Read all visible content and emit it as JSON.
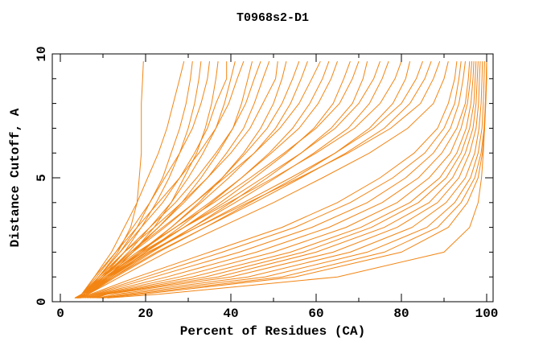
{
  "chart_data": {
    "type": "line",
    "title": "T0968s2-D1",
    "xlabel": "Percent of Residues (CA)",
    "ylabel": "Distance Cutoff, A",
    "xlim": [
      0,
      100
    ],
    "ylim": [
      0,
      10
    ],
    "x_major_ticks": [
      0,
      20,
      40,
      60,
      80,
      100
    ],
    "x_minor_ticks": [
      10,
      30,
      50,
      70,
      90
    ],
    "y_major_ticks": [
      0,
      5,
      10
    ],
    "y_minor_ticks": [
      1,
      2,
      3,
      4,
      6,
      7,
      8,
      9
    ],
    "grid": "off",
    "legend": "none",
    "line_color": "#F28514",
    "axis_color": "#000000",
    "note": "44 model curves; each curve lists x (percent of residues) at the distance cutoffs in y_grid",
    "y_grid": [
      0.15,
      0.3,
      1,
      2,
      3,
      4,
      5,
      6,
      7,
      8,
      9,
      9.7
    ],
    "curves": [
      [
        3.8,
        5.5,
        9,
        13.5,
        16.5,
        18,
        18.5,
        19,
        19,
        19,
        19.3,
        19.5
      ],
      [
        3.5,
        5,
        8,
        12,
        15,
        18,
        20.5,
        23,
        25,
        26.5,
        28,
        29
      ],
      [
        4,
        5.5,
        9,
        14,
        18,
        21,
        24,
        26,
        28,
        29.5,
        30.5,
        31
      ],
      [
        4.2,
        6,
        10,
        15,
        19,
        22.5,
        25.5,
        28,
        30,
        31.5,
        32.5,
        33
      ],
      [
        3.5,
        5,
        8.5,
        13,
        17,
        21,
        24.5,
        28,
        31,
        33,
        34.5,
        35
      ],
      [
        4.3,
        6,
        11,
        17,
        22,
        26,
        29,
        32,
        34,
        35.5,
        36.5,
        37
      ],
      [
        3.8,
        5.5,
        9,
        14,
        19,
        24,
        28,
        31.5,
        34.5,
        36.5,
        39,
        39
      ],
      [
        4.2,
        6,
        10,
        16,
        21,
        26,
        30,
        33.5,
        36.5,
        38.5,
        40,
        41
      ],
      [
        3.4,
        5,
        8,
        13,
        18,
        23,
        28,
        32.5,
        36.5,
        39.5,
        41.5,
        43
      ],
      [
        4.5,
        6.5,
        11,
        17,
        23,
        28.5,
        33,
        37,
        40.5,
        42.5,
        44,
        45
      ],
      [
        3.9,
        5.5,
        9.5,
        15,
        21,
        27,
        32,
        36.5,
        40.5,
        43.5,
        45.5,
        47
      ],
      [
        4.1,
        6,
        10,
        16.5,
        23,
        29,
        34.5,
        39,
        43,
        45.5,
        47.5,
        49
      ],
      [
        3.5,
        5,
        9,
        15,
        22,
        28.5,
        34.5,
        40,
        44.5,
        47.5,
        50.5,
        51
      ],
      [
        4.6,
        6.5,
        11.5,
        19,
        26,
        32.5,
        38,
        43,
        47,
        50,
        52,
        53
      ],
      [
        3.8,
        5.5,
        10,
        17,
        24.5,
        31.5,
        38,
        43.5,
        48.5,
        52,
        54.5,
        56
      ],
      [
        4.2,
        6,
        11,
        18.5,
        26,
        33,
        39.5,
        45.5,
        50.5,
        54,
        56.5,
        58
      ],
      [
        3.5,
        5,
        9.5,
        16.5,
        24,
        31.5,
        38.5,
        45.5,
        51.5,
        56,
        59,
        61
      ],
      [
        4.6,
        6.5,
        12,
        20,
        28,
        35.5,
        42.5,
        49,
        54.5,
        58.5,
        61.5,
        63
      ],
      [
        3.9,
        5.5,
        10.5,
        18.5,
        27,
        35,
        42.5,
        49.5,
        56,
        60.5,
        63.5,
        65
      ],
      [
        4.2,
        6,
        11.5,
        20,
        29,
        37.5,
        45.5,
        53,
        59.5,
        64,
        66.5,
        68
      ],
      [
        3.4,
        5,
        10,
        18,
        27,
        36,
        44.5,
        52.5,
        60,
        65.5,
        68.5,
        70
      ],
      [
        4.6,
        6.5,
        12.5,
        21.5,
        31,
        40,
        48.5,
        56.5,
        63.5,
        68.5,
        71,
        72
      ],
      [
        3.8,
        5.5,
        11,
        19.5,
        29,
        38.5,
        47.5,
        56.5,
        64.5,
        70,
        73.5,
        75
      ],
      [
        4.2,
        6,
        12,
        21,
        31,
        41,
        50.5,
        59.5,
        67.5,
        72.5,
        75.5,
        77
      ],
      [
        3.5,
        5,
        10.5,
        19,
        29,
        39.5,
        50,
        60,
        69,
        75,
        78.5,
        80
      ],
      [
        4.6,
        6.5,
        13,
        23,
        34,
        44.5,
        55,
        64.5,
        72.5,
        78,
        81,
        82
      ],
      [
        3.9,
        5.5,
        11.5,
        21,
        32,
        43,
        54,
        64.5,
        73.5,
        80,
        83.5,
        85
      ],
      [
        4.2,
        6,
        12.5,
        22.5,
        34,
        45.5,
        56.5,
        67,
        76,
        82,
        85.5,
        87
      ],
      [
        3.4,
        5,
        11,
        20.5,
        32,
        44,
        56,
        67.5,
        77.5,
        84.5,
        87.5,
        89
      ],
      [
        4.6,
        6.5,
        14,
        25,
        37.5,
        50,
        61.5,
        72.5,
        81.5,
        87.5,
        90,
        91
      ],
      [
        5,
        7,
        18,
        35,
        52,
        65,
        75,
        83,
        88.5,
        91,
        92.5,
        93
      ],
      [
        5.4,
        7.5,
        20,
        38,
        55,
        68,
        78,
        85.5,
        90,
        92.5,
        93.5,
        94
      ],
      [
        5.8,
        8,
        22,
        42,
        59,
        72,
        81,
        87.5,
        91.5,
        93.5,
        94.5,
        95
      ],
      [
        6.2,
        8.5,
        25,
        46,
        63,
        75.5,
        84,
        89.5,
        93,
        95,
        95.7,
        96
      ],
      [
        6.6,
        9,
        28,
        50,
        67,
        79,
        86.5,
        91.5,
        94,
        95.5,
        96.2,
        96.5
      ],
      [
        7,
        9.5,
        31,
        54,
        70.5,
        82,
        89,
        93,
        95.2,
        96.3,
        96.8,
        97
      ],
      [
        7.4,
        10,
        34,
        57,
        73,
        84,
        90.5,
        94,
        96,
        97,
        97.3,
        97.5
      ],
      [
        7.8,
        10.5,
        37,
        60,
        76,
        86.5,
        92,
        95,
        96.8,
        97.5,
        97.8,
        98
      ],
      [
        8.2,
        11,
        40,
        64,
        79,
        88.5,
        93.5,
        96,
        97.5,
        98.1,
        98.3,
        98.5
      ],
      [
        8.6,
        13,
        44,
        68,
        82.5,
        90.5,
        95,
        97.2,
        98.2,
        98.7,
        98.9,
        99
      ],
      [
        9,
        15,
        48,
        72,
        86,
        92.5,
        96.2,
        98,
        98.9,
        99.2,
        99.4,
        99.5
      ],
      [
        9.5,
        17,
        52,
        76,
        88.5,
        94,
        97.2,
        98.7,
        99.4,
        99.7,
        99.9,
        100
      ],
      [
        10,
        19,
        55,
        80,
        91,
        95.5,
        98,
        99,
        99.5,
        99.8,
        100,
        100
      ],
      [
        11,
        23,
        65,
        90,
        96,
        98,
        98.8,
        99.2,
        99.5,
        99.7,
        99.9,
        100
      ]
    ]
  }
}
